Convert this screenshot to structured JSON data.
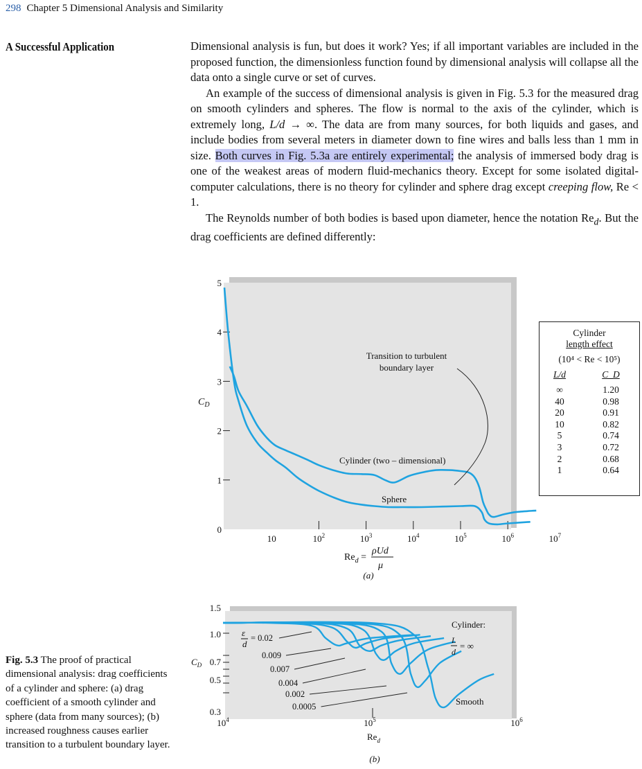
{
  "header": {
    "page_number": "298",
    "chapter": "Chapter 5  Dimensional Analysis and Similarity"
  },
  "section_title": "A Successful Application",
  "paragraphs": {
    "p1": "Dimensional analysis is fun, but does it work? Yes; if all important variables are included in the proposed function, the dimensionless function found by dimensional analysis will collapse all the data onto a single curve or set of curves.",
    "p2_a": "An example of the success of dimensional analysis is given in Fig. 5.3 for the measured drag on smooth cylinders and spheres. The flow is normal to the axis of the cylinder, which is extremely long, ",
    "p2_ld": "L/d",
    "p2_b": " → ∞. The data are from many sources, for both liquids and gases, and include bodies from several meters in diameter down to fine wires and balls less than 1 mm in size. ",
    "p2_highlight": "Both curves in Fig. 5.3a are entirely experimental;",
    "p2_c": " the analysis of immersed body drag is one of the weakest areas of modern fluid-mechanics theory. Except for some isolated digital-computer calculations, there is no theory for cylinder and sphere drag except ",
    "p2_cf": "creeping flow,",
    "p2_d": " Re < 1.",
    "p3_a": "The Reynolds number of both bodies is based upon diameter, hence the notation Re",
    "p3_sub": "d",
    "p3_b": ". But the drag coefficients are defined differently:"
  },
  "caption": {
    "label": "Fig. 5.3",
    "text": " The proof of practical dimensional analysis: drag coefficients of a cylinder and sphere: (a) drag coefficient of a smooth cylinder and sphere (data from many sources); (b) increased roughness causes earlier transition to a turbulent boundary layer."
  },
  "table": {
    "title_1": "Cylinder",
    "title_2": "length effect",
    "range": "(10⁴ < Re < 10⁵)",
    "col1": "L/d",
    "col2": "C_D",
    "rows": [
      {
        "ld": "∞",
        "cd": "1.20"
      },
      {
        "ld": "40",
        "cd": "0.98"
      },
      {
        "ld": "20",
        "cd": "0.91"
      },
      {
        "ld": "10",
        "cd": "0.82"
      },
      {
        "ld": "5",
        "cd": "0.74"
      },
      {
        "ld": "3",
        "cd": "0.72"
      },
      {
        "ld": "2",
        "cd": "0.68"
      },
      {
        "ld": "1",
        "cd": "0.64"
      }
    ]
  },
  "chart_data": [
    {
      "type": "line",
      "panel_label": "(a)",
      "ylabel": "C_D",
      "xlabel": "Re_d = ρUd/μ",
      "x_scale": "log",
      "xlim": [
        1,
        10000000
      ],
      "ylim": [
        0,
        5
      ],
      "x_ticks": [
        "10",
        "10²",
        "10³",
        "10⁴",
        "10⁵",
        "10⁶",
        "10⁷"
      ],
      "y_ticks": [
        "0",
        "1",
        "2",
        "3",
        "4",
        "5"
      ],
      "annotations": [
        "Transition to turbulent",
        "boundary layer"
      ],
      "series": [
        {
          "name": "Cylinder (two – dimensional)",
          "x": [
            1.3,
            1.6,
            2,
            3,
            5,
            8,
            12,
            20,
            35,
            60,
            100,
            200,
            400,
            800,
            1500,
            2500,
            4000,
            8000,
            15000,
            30000,
            60000,
            100000,
            150000,
            200000,
            250000,
            300000,
            350000,
            400000,
            500000,
            800000,
            1500000,
            4000000
          ],
          "y": [
            3.3,
            3.1,
            2.8,
            2.5,
            2.1,
            1.85,
            1.7,
            1.6,
            1.5,
            1.4,
            1.3,
            1.2,
            1.13,
            1.12,
            1.1,
            1.0,
            0.95,
            1.08,
            1.15,
            1.2,
            1.2,
            1.18,
            1.15,
            1.05,
            0.85,
            0.55,
            0.4,
            0.3,
            0.25,
            0.3,
            0.35,
            0.38
          ]
        },
        {
          "name": "Sphere",
          "x": [
            1,
            1.2,
            1.6,
            2,
            3,
            5,
            8,
            12,
            20,
            35,
            60,
            100,
            200,
            400,
            800,
            1500,
            3000,
            6000,
            15000,
            40000,
            100000,
            200000,
            280000,
            320000,
            400000,
            600000,
            1000000,
            3000000
          ],
          "y": [
            4.9,
            4.0,
            3.0,
            2.6,
            2.1,
            1.75,
            1.55,
            1.4,
            1.25,
            1.05,
            0.9,
            0.78,
            0.65,
            0.55,
            0.5,
            0.47,
            0.45,
            0.45,
            0.45,
            0.46,
            0.47,
            0.47,
            0.35,
            0.2,
            0.12,
            0.1,
            0.12,
            0.15
          ]
        }
      ]
    },
    {
      "type": "line",
      "panel_label": "(b)",
      "ylabel": "C_D",
      "xlabel": "Re_d",
      "x_scale": "log",
      "y_scale": "log",
      "xlim": [
        10000,
        1000000
      ],
      "ylim": [
        0.3,
        1.5
      ],
      "x_ticks": [
        "10⁴",
        "10⁵",
        "10⁶"
      ],
      "y_ticks": [
        "0.3",
        "0.5",
        "0.7",
        "1.0",
        "1.5"
      ],
      "annotations": [
        "Cylinder:",
        "L/d = ∞"
      ],
      "series": [
        {
          "name": "ε/d = 0.02",
          "x": [
            10000,
            20000,
            40000,
            50000,
            60000,
            70000,
            100000,
            200000
          ],
          "y": [
            1.2,
            1.2,
            1.15,
            0.95,
            0.85,
            0.88,
            0.95,
            1.0
          ]
        },
        {
          "name": "0.009",
          "x": [
            10000,
            30000,
            55000,
            70000,
            80000,
            95000,
            130000,
            220000
          ],
          "y": [
            1.2,
            1.2,
            1.12,
            0.9,
            0.82,
            0.88,
            0.95,
            1.0
          ]
        },
        {
          "name": "0.007",
          "x": [
            10000,
            40000,
            70000,
            85000,
            100000,
            120000,
            160000,
            260000
          ],
          "y": [
            1.2,
            1.2,
            1.1,
            0.85,
            0.78,
            0.85,
            0.92,
            0.98
          ]
        },
        {
          "name": "0.004",
          "x": [
            10000,
            50000,
            90000,
            110000,
            125000,
            150000,
            200000,
            320000
          ],
          "y": [
            1.2,
            1.2,
            1.08,
            0.75,
            0.68,
            0.78,
            0.88,
            0.95
          ]
        },
        {
          "name": "0.002",
          "x": [
            10000,
            60000,
            120000,
            140000,
            160000,
            190000,
            250000,
            380000
          ],
          "y": [
            1.2,
            1.2,
            1.05,
            0.65,
            0.55,
            0.65,
            0.8,
            0.9
          ]
        },
        {
          "name": "0.0005",
          "x": [
            10000,
            80000,
            160000,
            190000,
            210000,
            240000,
            300000,
            420000
          ],
          "y": [
            1.2,
            1.2,
            1.0,
            0.55,
            0.45,
            0.5,
            0.65,
            0.78
          ]
        },
        {
          "name": "Smooth",
          "x": [
            10000,
            100000,
            200000,
            250000,
            280000,
            320000,
            400000,
            550000,
            700000
          ],
          "y": [
            1.2,
            1.2,
            1.0,
            0.6,
            0.38,
            0.33,
            0.4,
            0.5,
            0.55
          ]
        }
      ]
    }
  ]
}
